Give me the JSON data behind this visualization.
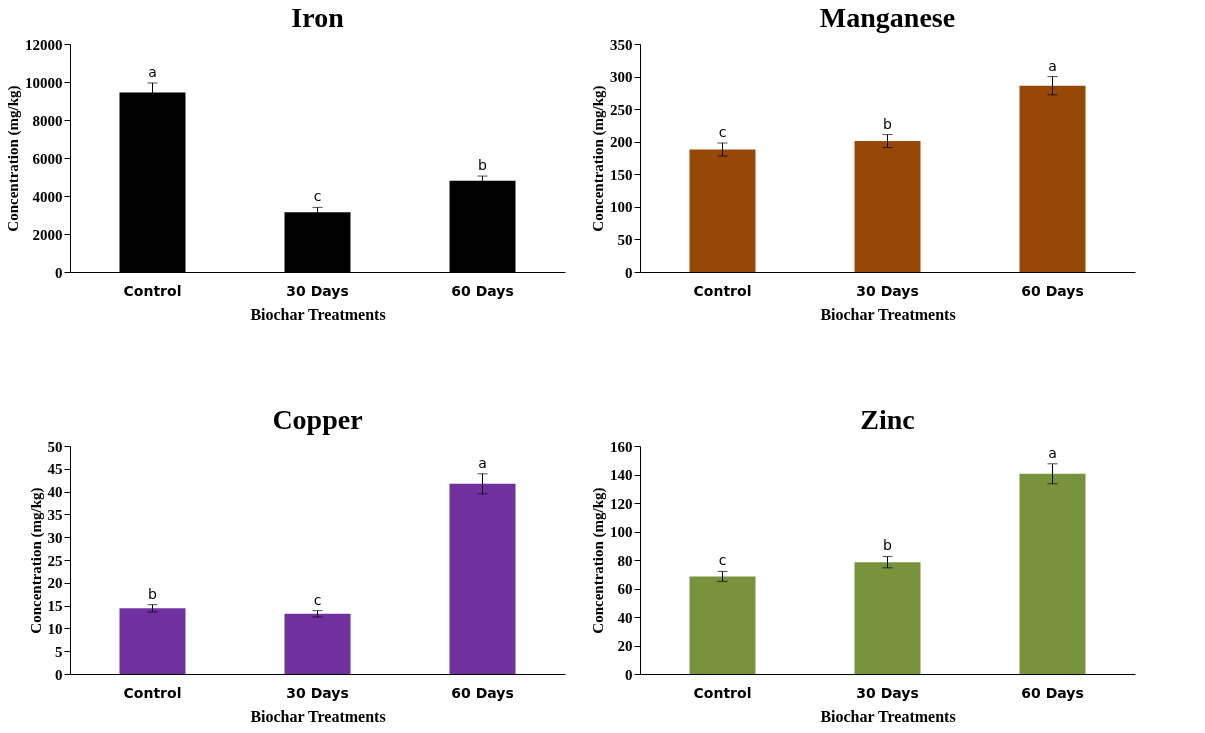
{
  "chart_data": [
    {
      "type": "bar",
      "title": "Iron",
      "xlabel": "Biochar Treatments",
      "ylabel": "Concentration (mg/kg)",
      "categories": [
        "Control",
        "30 Days",
        "60 Days"
      ],
      "values": [
        9450,
        3150,
        4800
      ],
      "errors": [
        500,
        250,
        250
      ],
      "color": "#000000",
      "ylim": [
        0,
        12000
      ],
      "yticks": [
        0,
        2000,
        4000,
        6000,
        8000,
        10000,
        12000
      ],
      "annotations": [
        {
          "text": "a",
          "x": "Control",
          "y": 9950
        },
        {
          "text": "c",
          "x": "30 Days",
          "y": 3400
        },
        {
          "text": "b",
          "x": "60 Days",
          "y": 5050
        }
      ]
    },
    {
      "type": "bar",
      "title": "Manganese",
      "xlabel": "Biochar Treatments",
      "ylabel": "Concentration (mg/kg)",
      "categories": [
        "Control",
        "30 Days",
        "60 Days"
      ],
      "values": [
        188,
        201,
        286
      ],
      "errors": [
        10,
        10,
        14
      ],
      "color": "#974706",
      "ylim": [
        0,
        350
      ],
      "yticks": [
        0,
        50,
        100,
        150,
        200,
        250,
        300,
        350
      ],
      "annotations": [
        {
          "text": "c",
          "x": "Control",
          "y": 198
        },
        {
          "text": "b",
          "x": "30 Days",
          "y": 211
        },
        {
          "text": "a",
          "x": "60 Days",
          "y": 300
        }
      ]
    },
    {
      "type": "bar",
      "title": "Copper",
      "xlabel": "Biochar Treatments",
      "ylabel": "Concentration (mg/kg)",
      "categories": [
        "Control",
        "30 Days",
        "60 Days"
      ],
      "values": [
        14.4,
        13.2,
        41.7
      ],
      "errors": [
        0.8,
        0.7,
        2.2
      ],
      "color": "#7030a0",
      "ylim": [
        0,
        50
      ],
      "yticks": [
        0,
        5,
        10,
        15,
        20,
        25,
        30,
        35,
        40,
        45,
        50
      ],
      "annotations": [
        {
          "text": "b",
          "x": "Control",
          "y": 15.2
        },
        {
          "text": "c",
          "x": "30 Days",
          "y": 13.9
        },
        {
          "text": "a",
          "x": "60 Days",
          "y": 43.9
        }
      ]
    },
    {
      "type": "bar",
      "title": "Zinc",
      "xlabel": "Biochar Treatments",
      "ylabel": "Concentration (mg/kg)",
      "categories": [
        "Control",
        "30 Days",
        "60 Days"
      ],
      "values": [
        68.5,
        78.5,
        140.5
      ],
      "errors": [
        3.5,
        4,
        7
      ],
      "color": "#77933c",
      "ylim": [
        0,
        160
      ],
      "yticks": [
        0,
        20,
        40,
        60,
        80,
        100,
        120,
        140,
        160
      ],
      "annotations": [
        {
          "text": "c",
          "x": "Control",
          "y": 72
        },
        {
          "text": "b",
          "x": "30 Days",
          "y": 82.5
        },
        {
          "text": "a",
          "x": "60 Days",
          "y": 147.5
        }
      ]
    }
  ]
}
